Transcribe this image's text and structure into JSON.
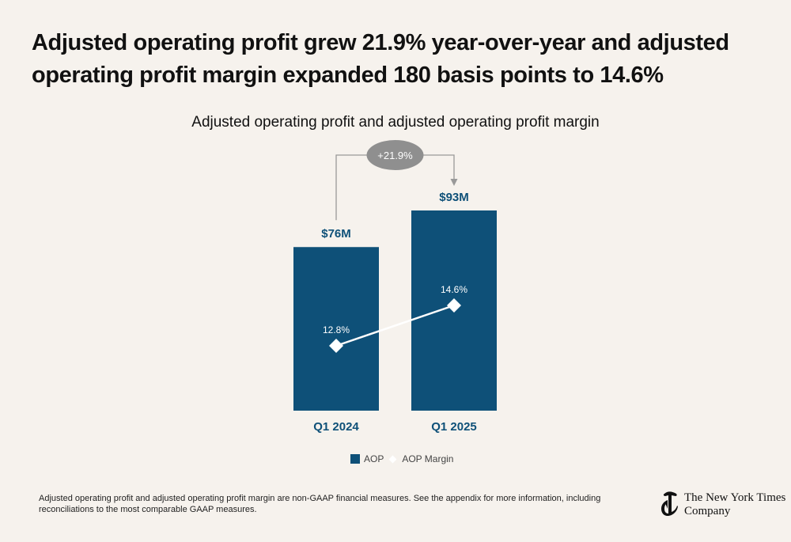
{
  "headline": "Adjusted operating profit grew 21.9% year-over-year and adjusted operating profit margin expanded 180 basis points to 14.6%",
  "colors": {
    "background": "#f6f2ed",
    "bar": "#0e5078",
    "bar_label": "#0e5078",
    "margin_line": "#ffffff",
    "growth_bubble": "#8f8f8f",
    "growth_bracket": "#999999"
  },
  "chart_data": {
    "type": "bar",
    "title": "Adjusted operating profit and adjusted operating profit margin",
    "categories": [
      "Q1 2024",
      "Q1 2025"
    ],
    "series": [
      {
        "name": "AOP",
        "type": "bar",
        "values": [
          76,
          93
        ],
        "labels": [
          "$76M",
          "$93M"
        ]
      },
      {
        "name": "AOP Margin",
        "type": "line",
        "values": [
          12.8,
          14.6
        ],
        "labels": [
          "12.8%",
          "14.6%"
        ]
      }
    ],
    "annotation": "+21.9%",
    "ylim": [
      0,
      93
    ]
  },
  "legend": {
    "items": [
      {
        "name": "AOP",
        "icon": "square"
      },
      {
        "name": "AOP Margin",
        "icon": "diamond"
      }
    ]
  },
  "footnote": "Adjusted operating profit and adjusted operating profit margin are non-GAAP financial measures. See the appendix for more information, including reconciliations to the most comparable GAAP measures.",
  "logo": {
    "icon": "nyt-t-logo-icon",
    "line1": "The New York Times",
    "line2": "Company"
  }
}
